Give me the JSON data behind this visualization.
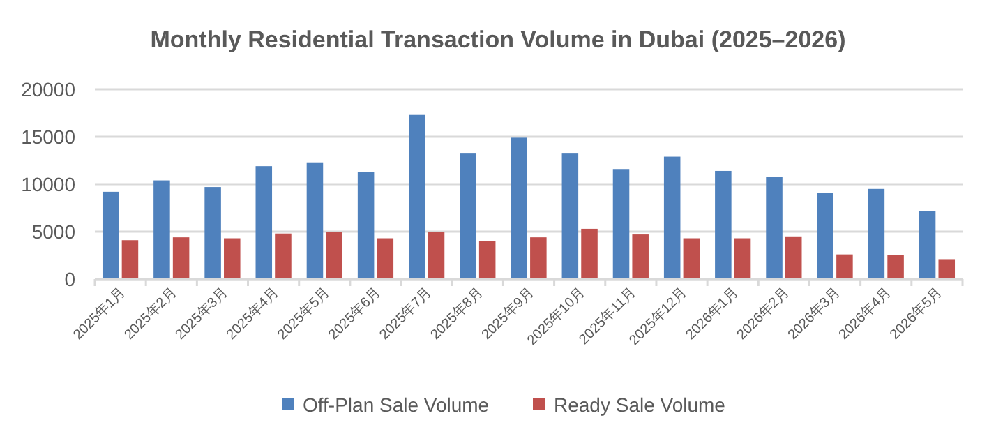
{
  "chart_data": {
    "type": "bar",
    "title": "Monthly Residential Transaction Volume in Dubai (2025–2026)",
    "categories": [
      "2025年1月",
      "2025年2月",
      "2025年3月",
      "2025年4月",
      "2025年5月",
      "2025年6月",
      "2025年7月",
      "2025年8月",
      "2025年9月",
      "2025年10月",
      "2025年11月",
      "2025年12月",
      "2026年1月",
      "2026年2月",
      "2026年3月",
      "2026年4月",
      "2026年5月"
    ],
    "series": [
      {
        "name": "Off-Plan Sale Volume",
        "color": "#4f81bd",
        "values": [
          9200,
          10400,
          9700,
          11900,
          12300,
          11300,
          17300,
          13300,
          14900,
          13300,
          11600,
          12900,
          11400,
          10800,
          9100,
          9500,
          7200
        ]
      },
      {
        "name": "Ready Sale Volume",
        "color": "#c0504d",
        "values": [
          4100,
          4400,
          4300,
          4800,
          5000,
          4300,
          5000,
          4000,
          4400,
          5300,
          4700,
          4300,
          4300,
          4500,
          2600,
          2500,
          2100
        ]
      }
    ],
    "ylim": [
      0,
      20000
    ],
    "yticks": [
      0,
      5000,
      10000,
      15000,
      20000
    ],
    "grid": "y",
    "legend": "bottom"
  }
}
